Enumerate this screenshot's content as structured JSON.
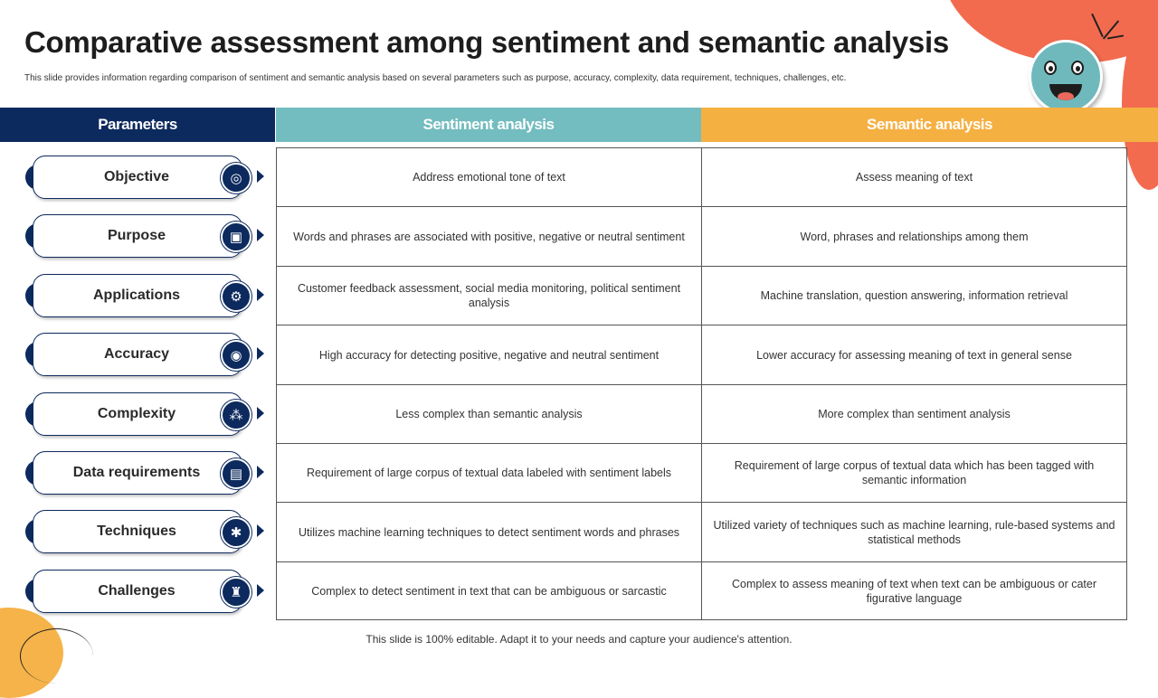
{
  "title": "Comparative assessment among sentiment and semantic analysis",
  "subtitle": "This slide provides information regarding comparison of sentiment and semantic analysis based on several parameters such as purpose, accuracy, complexity, data requirement, techniques, challenges, etc.",
  "colors": {
    "navy": "#0d2a5e",
    "teal": "#73bcbf",
    "orange": "#f5b042",
    "coral": "#f26b4f"
  },
  "header": {
    "parameters": "Parameters",
    "sentiment": "Sentiment analysis",
    "semantic": "Semantic analysis"
  },
  "rows": [
    {
      "param": "Objective",
      "icon": "target-icon",
      "glyph": "◎",
      "sentiment": "Address emotional tone of text",
      "semantic": "Assess meaning of text"
    },
    {
      "param": "Purpose",
      "icon": "presentation-icon",
      "glyph": "▣",
      "sentiment": "Words and phrases are associated with positive, negative or neutral sentiment",
      "semantic": "Word, phrases and relationships among them"
    },
    {
      "param": "Applications",
      "icon": "settings-window-icon",
      "glyph": "⚙",
      "sentiment": "Customer feedback assessment, social media monitoring, political sentiment analysis",
      "semantic": "Machine translation, question answering, information retrieval"
    },
    {
      "param": "Accuracy",
      "icon": "accuracy-gauge-icon",
      "glyph": "◉",
      "sentiment": "High accuracy for detecting positive, negative and neutral sentiment",
      "semantic": "Lower accuracy for assessing meaning of text in general sense"
    },
    {
      "param": "Complexity",
      "icon": "network-icon",
      "glyph": "⁂",
      "sentiment": "Less complex than semantic analysis",
      "semantic": "More complex than sentiment analysis"
    },
    {
      "param": "Data requirements",
      "icon": "data-icon",
      "glyph": "▤",
      "sentiment": "Requirement  of large corpus of textual data labeled with sentiment labels",
      "semantic": "Requirement  of large corpus of textual data which has been tagged with semantic information"
    },
    {
      "param": "Techniques",
      "icon": "head-gears-icon",
      "glyph": "✱",
      "sentiment": "Utilizes machine learning techniques to detect sentiment words and phrases",
      "semantic": "Utilized variety of techniques such as machine learning, rule-based systems and statistical methods"
    },
    {
      "param": "Challenges",
      "icon": "challenge-chart-icon",
      "glyph": "♜",
      "sentiment": "Complex to detect sentiment in text that can be ambiguous or sarcastic",
      "semantic": "Complex to assess meaning of text when text can be ambiguous or cater figurative  language"
    }
  ],
  "footer": "This slide is 100% editable. Adapt it to your needs and capture your audience's attention."
}
